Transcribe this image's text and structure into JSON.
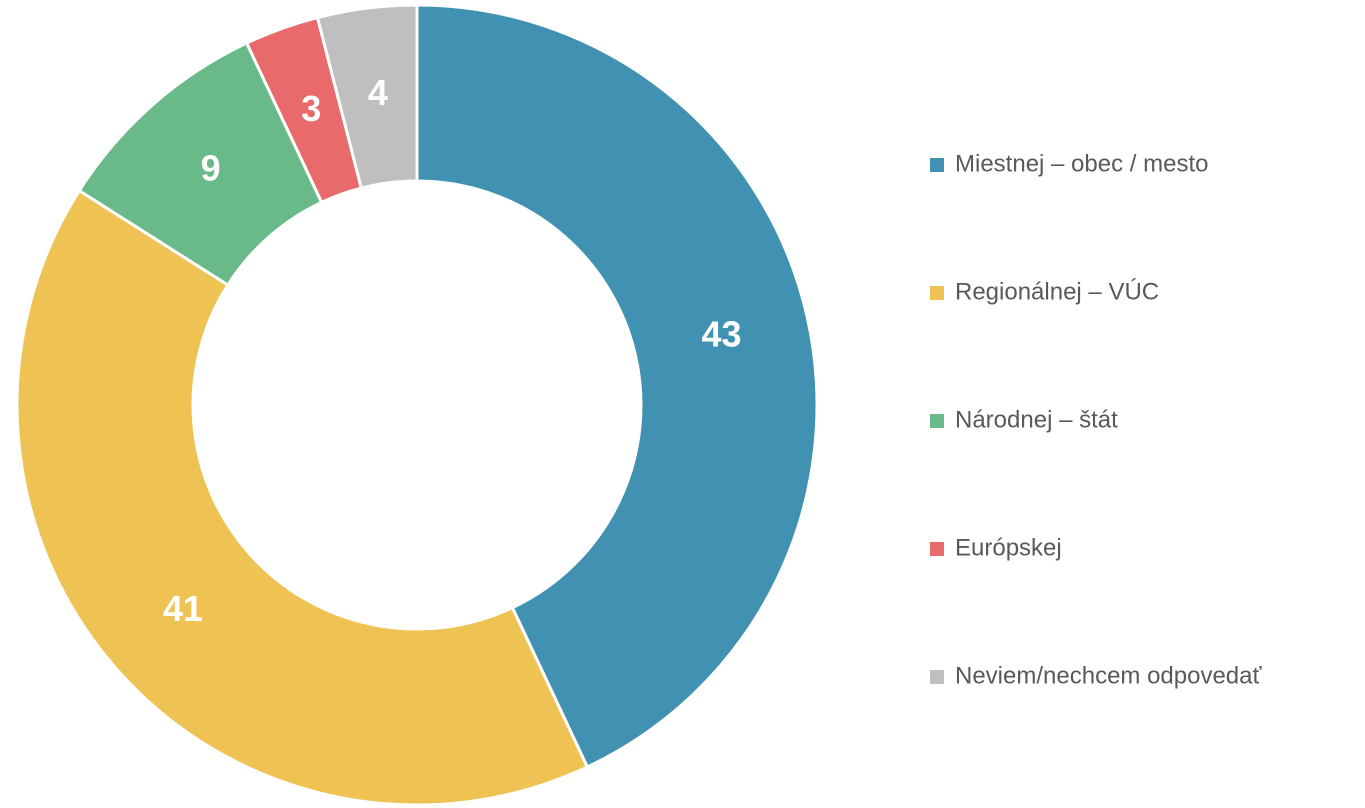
{
  "chart_data": {
    "type": "doughnut",
    "categories": [
      "Miestnej – obec / mesto",
      "Regionálnej – VÚC",
      "Národnej – štát",
      "Európskej",
      "Neviem/nechcem odpovedať"
    ],
    "values": [
      43,
      41,
      9,
      3,
      4
    ],
    "colors": [
      "#4191b3",
      "#efc254",
      "#6aba89",
      "#e86a6a",
      "#bfbfbf"
    ],
    "legend": "right"
  }
}
